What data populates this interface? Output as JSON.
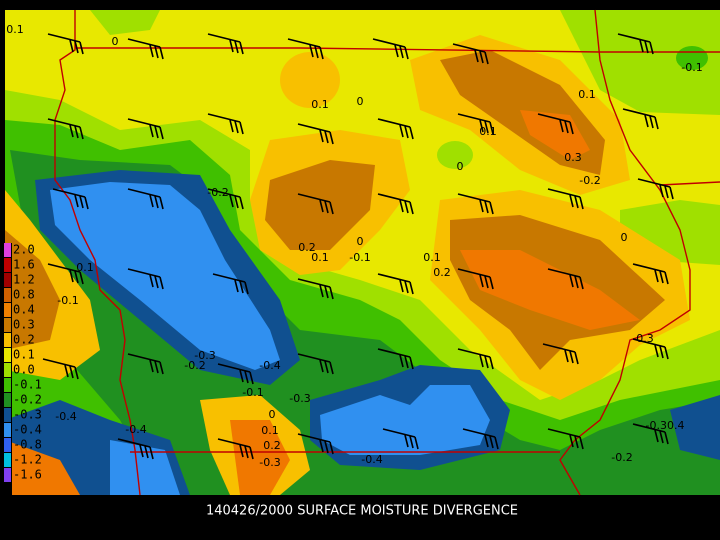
{
  "caption": "140426/2000 SURFACE MOISTURE DIVERGENCE",
  "legend": [
    "2.0",
    "1.6",
    "1.2",
    "0.8",
    "0.4",
    "0.3",
    "0.2",
    "0.1",
    "0.0",
    "-0.1",
    "-0.2",
    "-0.3",
    "-0.4",
    "-0.8",
    "-1.2",
    "-1.6"
  ],
  "contour_labels": [
    "0.1",
    "0",
    "-0.1",
    "0.1",
    "0",
    "0.1",
    "0.1",
    "0.3",
    "0",
    "-0.2",
    "-0.2",
    "0",
    "0.2",
    "0.1",
    "-0.1",
    "0",
    "0.1",
    "0.2",
    "0.3",
    "-0.3",
    "-0.2",
    "-0.4",
    "-0.1",
    "-0.3",
    "0",
    "-0.4",
    "-0.4",
    "0.1",
    "0.2",
    "-0.3",
    "-0.4",
    "-0.30.4",
    "-0.2",
    "0.1",
    "-0.1"
  ]
}
